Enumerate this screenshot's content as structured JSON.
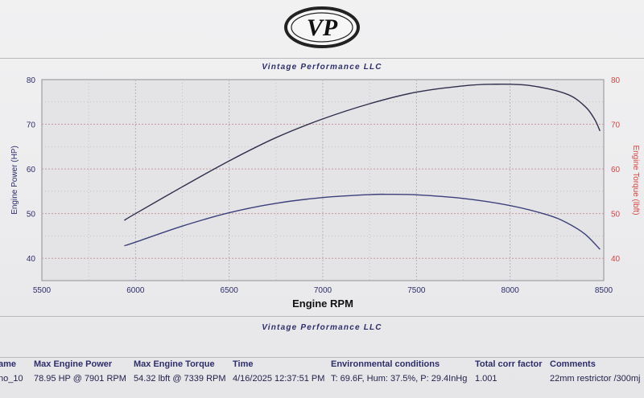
{
  "header": {
    "logo_text": "VP",
    "company_top": "Vintage Performance LLC",
    "company_bottom": "Vintage Performance LLC"
  },
  "colors": {
    "power_curve": "#2f2f4c",
    "torque_curve": "#3b3f7a",
    "left_axis": "#2d2d6b",
    "right_axis": "#d64545",
    "grid": "#b3b3ba",
    "panel": "#e4e4e7"
  },
  "chart_data": {
    "type": "line",
    "xlabel": "Engine RPM",
    "ylabel_left": "Engine Power (HP)",
    "ylabel_right": "Engine Torque (lbft)",
    "xlim": [
      5500,
      8500
    ],
    "ylim_left": [
      35,
      80
    ],
    "ylim_right": [
      35,
      80
    ],
    "x_ticks": [
      5500,
      6000,
      6500,
      7000,
      7500,
      8000,
      8500
    ],
    "y_ticks_left": [
      40,
      50,
      60,
      70,
      80
    ],
    "y_ticks_right": [
      40,
      50,
      60,
      70,
      80
    ],
    "grid": true,
    "series": [
      {
        "name": "Engine Power (HP)",
        "axis": "left",
        "x": [
          5940,
          6000,
          6250,
          6500,
          6750,
          7000,
          7250,
          7500,
          7750,
          7900,
          8100,
          8300,
          8400,
          8450,
          8480
        ],
        "y": [
          48.5,
          50.0,
          56.0,
          61.8,
          67.0,
          71.2,
          74.6,
          77.2,
          78.6,
          78.95,
          78.7,
          76.8,
          74.0,
          71.2,
          68.5
        ]
      },
      {
        "name": "Engine Torque (lbft)",
        "axis": "right",
        "x": [
          5940,
          6000,
          6250,
          6500,
          6750,
          7000,
          7250,
          7339,
          7500,
          7750,
          8000,
          8200,
          8300,
          8400,
          8480
        ],
        "y": [
          42.8,
          43.6,
          47.2,
          50.2,
          52.3,
          53.6,
          54.25,
          54.32,
          54.2,
          53.4,
          51.8,
          49.7,
          48.0,
          45.4,
          42.0
        ]
      }
    ]
  },
  "table": {
    "headers": [
      "ame",
      "Max Engine Power",
      "Max Engine Torque",
      "Time",
      "Environmental conditions",
      "Total corr factor",
      "Comments"
    ],
    "row": [
      "no_10",
      "78.95 HP @ 7901 RPM",
      "54.32 lbft @ 7339 RPM",
      "4/16/2025 12:37:51 PM",
      "T: 69.6F, Hum: 37.5%, P: 29.4InHg",
      "1.001",
      "22mm restrictor /300mj"
    ]
  }
}
